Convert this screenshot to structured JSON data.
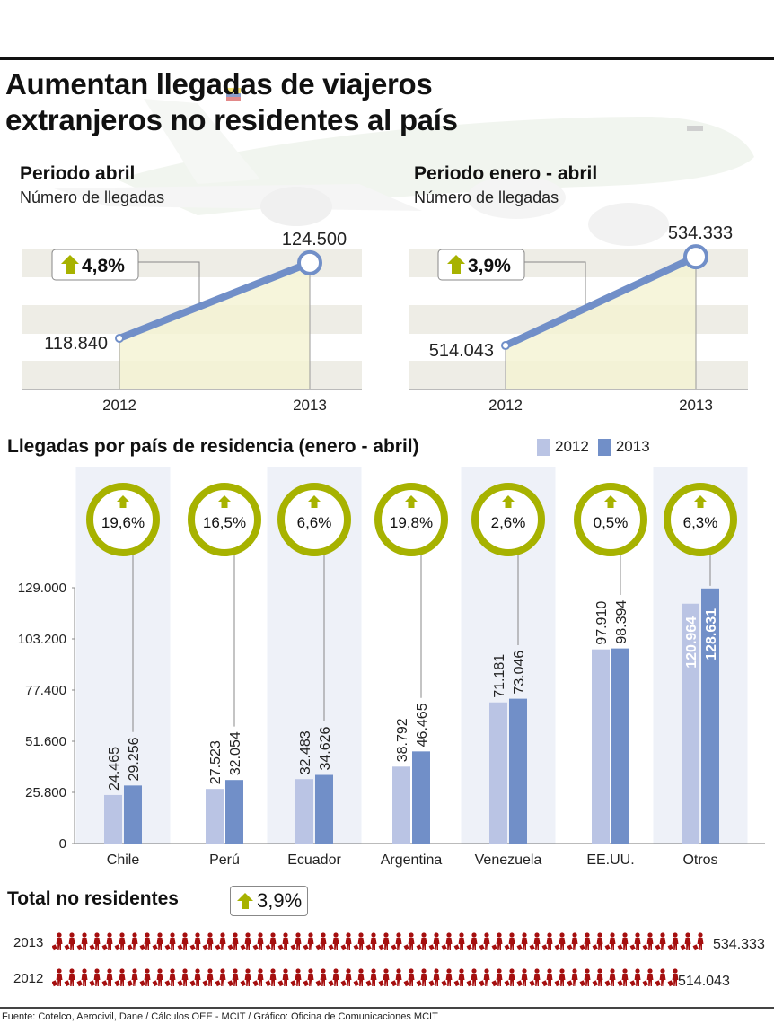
{
  "title": {
    "line1": "Aumentan llegadas de viajeros",
    "line2": "extranjeros no residentes al país"
  },
  "colors": {
    "bar_2012": "#bac4e4",
    "bar_2013": "#718fc8",
    "line": "#718fc8",
    "area": "#f4f3d2",
    "green": "#a7b200",
    "band": "#eeede6",
    "col_band": "#eef1f8",
    "traveler": "#a50f0f"
  },
  "chart_data": [
    {
      "type": "line",
      "id": "abril",
      "title": "Periodo abril",
      "subtitle": "Número de llegadas",
      "x": [
        "2012",
        "2013"
      ],
      "values": [
        118840,
        124500
      ],
      "value_labels": [
        "118.840",
        "124.500"
      ],
      "change_label": "4,8%",
      "ylim": [
        115000,
        125500
      ]
    },
    {
      "type": "line",
      "id": "enero_abril",
      "title": "Periodo enero - abril",
      "subtitle": "Número de llegadas",
      "x": [
        "2012",
        "2013"
      ],
      "values": [
        514043,
        534333
      ],
      "value_labels": [
        "514.043",
        "534.333"
      ],
      "change_label": "3,9%",
      "ylim": [
        504000,
        536000
      ]
    },
    {
      "type": "bar",
      "id": "por_pais",
      "title": "Llegadas por país de residencia (enero - abril)",
      "legend": [
        "2012",
        "2013"
      ],
      "legend_placement": "top-right",
      "categories": [
        "Chile",
        "Perú",
        "Ecuador",
        "Argentina",
        "Venezuela",
        "EE.UU.",
        "Otros"
      ],
      "series": [
        {
          "name": "2012",
          "values": [
            24465,
            27523,
            32483,
            38792,
            71181,
            97910,
            120964
          ],
          "labels": [
            "24.465",
            "27.523",
            "32.483",
            "38.792",
            "71.181",
            "97.910",
            "120.964"
          ]
        },
        {
          "name": "2013",
          "values": [
            29256,
            32054,
            34626,
            46465,
            73046,
            98394,
            128631
          ],
          "labels": [
            "29.256",
            "32.054",
            "34.626",
            "46.465",
            "73.046",
            "98.394",
            "128.631"
          ]
        }
      ],
      "changes": [
        "19,6%",
        "16,5%",
        "6,6%",
        "19,8%",
        "2,6%",
        "0,5%",
        "6,3%"
      ],
      "yticks": [
        0,
        25800,
        51600,
        77400,
        103200,
        129000
      ],
      "ytick_labels": [
        "0",
        "25.800",
        "51.600",
        "77.400",
        "103.200",
        "129.000"
      ],
      "ylim": [
        0,
        129000
      ]
    },
    {
      "type": "bar",
      "id": "total",
      "title": "Total no residentes",
      "change_label": "3,9%",
      "categories": [
        "2013",
        "2012"
      ],
      "values": [
        534333,
        514043
      ],
      "value_labels": [
        "534.333",
        "514.043"
      ]
    }
  ],
  "footer": "Fuente: Cotelco, Aerocivil, Dane / Cálculos OEE - MCIT / Gráfico: Oficina de Comunicaciones MCIT"
}
